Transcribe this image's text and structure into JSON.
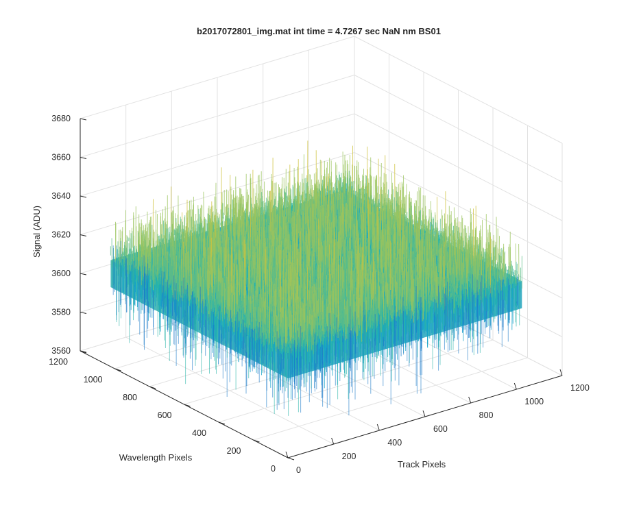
{
  "chart_data": {
    "type": "surface",
    "title": "b2017072801_img.mat int time = 4.7267 sec  NaN nm BS01",
    "xlabel": "Track Pixels",
    "ylabel": "Wavelength Pixels",
    "zlabel": "Signal (ADU)",
    "xlim": [
      0,
      1200
    ],
    "ylim": [
      0,
      1200
    ],
    "zlim": [
      3560,
      3680
    ],
    "xticks": [
      "0",
      "200",
      "400",
      "600",
      "800",
      "1000",
      "1200"
    ],
    "yticks": [
      "0",
      "200",
      "400",
      "600",
      "800",
      "1000",
      "1200"
    ],
    "zticks": [
      "3560",
      "3580",
      "3600",
      "3620",
      "3640",
      "3660",
      "3680"
    ],
    "grid": true,
    "data_extent": {
      "x": [
        0,
        1024
      ],
      "y": [
        0,
        1024
      ]
    },
    "signal_mean": 3615,
    "signal_noise_range": [
      3575,
      3655
    ],
    "colormap": [
      "#1a7ac8",
      "#14a1c8",
      "#28b4a8",
      "#5cbd88",
      "#9bc45e",
      "#cfc23c"
    ]
  }
}
